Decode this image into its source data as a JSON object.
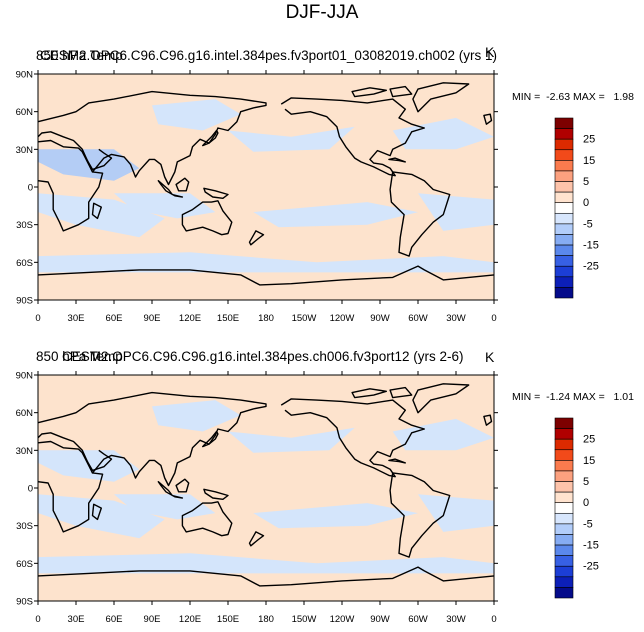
{
  "figure": {
    "title": "DJF-JJA"
  },
  "chart_data": [
    {
      "type": "heatmap",
      "left_label": "850 hPa Temp",
      "center_label": "CESM2.OPC6.C96.C96.g16.intel.384pes.fv3port01_03082019.ch002 (yrs 1)",
      "units": "K",
      "min_max": "MIN =  -2.63 MAX =   1.98",
      "min": -2.63,
      "max": 1.98,
      "x_ticks": [
        "0",
        "30E",
        "60E",
        "90E",
        "120E",
        "150E",
        "180",
        "150W",
        "120W",
        "90W",
        "60W",
        "30W",
        "0"
      ],
      "y_ticks": [
        "90N",
        "60N",
        "30N",
        "0",
        "30S",
        "60S",
        "90S"
      ],
      "xlim": [
        0,
        360
      ],
      "ylim": [
        -90,
        90
      ],
      "colorbar": {
        "labels": [
          "25",
          "15",
          "5",
          "0",
          "-5",
          "-15",
          "-25"
        ]
      }
    },
    {
      "type": "heatmap",
      "left_label": "850 hPa Temp",
      "center_label": "CESM2.OPC6.C96.C96.g16.intel.384pes.ch006.fv3port12 (yrs 2-6)",
      "units": "K",
      "min_max": "MIN =  -1.24 MAX =   1.01",
      "min": -1.24,
      "max": 1.01,
      "x_ticks": [
        "0",
        "30E",
        "60E",
        "90E",
        "120E",
        "150E",
        "180",
        "150W",
        "120W",
        "90W",
        "60W",
        "30W",
        "0"
      ],
      "y_ticks": [
        "90N",
        "60N",
        "30N",
        "0",
        "30S",
        "60S",
        "90S"
      ],
      "xlim": [
        0,
        360
      ],
      "ylim": [
        -90,
        90
      ],
      "colorbar": {
        "labels": [
          "25",
          "15",
          "5",
          "0",
          "-5",
          "-15",
          "-25"
        ]
      }
    }
  ]
}
